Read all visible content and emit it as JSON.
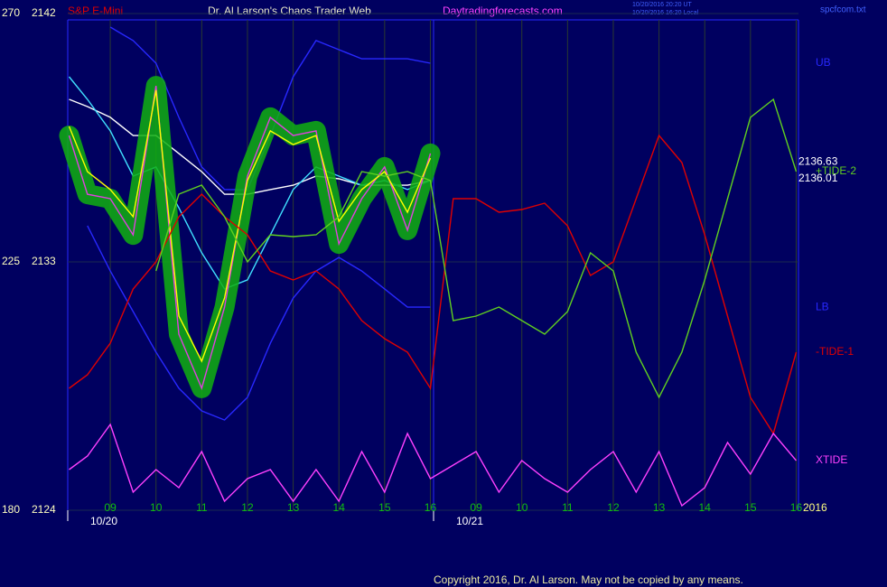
{
  "chart_data": {
    "type": "line",
    "title": "Dr. Al Larson's Chaos Trader Web",
    "subtitle": "S&P E-Mini",
    "site": "Daytradingforecasts.com",
    "timestamps": [
      "10/20/2016 20:20 UT",
      "10/20/2016 16:20 Local"
    ],
    "file": "spcfcom.txt",
    "copyright": "Copyright 2016, Dr. Al Larson. May not be copied by any means.",
    "year": "2016",
    "grid": true,
    "xlim": [
      0.07,
      16.05
    ],
    "xticks": [
      {
        "value": 1,
        "label": "09"
      },
      {
        "value": 2,
        "label": "10"
      },
      {
        "value": 3,
        "label": "11"
      },
      {
        "value": 4,
        "label": "12"
      },
      {
        "value": 5,
        "label": "13"
      },
      {
        "value": 6,
        "label": "14"
      },
      {
        "value": 7,
        "label": "15"
      },
      {
        "value": 8,
        "label": "16"
      },
      {
        "value": 9,
        "label": "09"
      },
      {
        "value": 10,
        "label": "10"
      },
      {
        "value": 11,
        "label": "11"
      },
      {
        "value": 12,
        "label": "12"
      },
      {
        "value": 13,
        "label": "13"
      },
      {
        "value": 14,
        "label": "14"
      },
      {
        "value": 15,
        "label": "15"
      },
      {
        "value": 16,
        "label": "16"
      }
    ],
    "day_ticks": [
      {
        "value": 0.07,
        "label": "10/20"
      },
      {
        "value": 8.07,
        "label": "10/21"
      }
    ],
    "ylim": [
      2124,
      2142
    ],
    "yticks": [
      2124,
      2133,
      2142
    ],
    "y2lim": [
      180,
      270
    ],
    "y2ticks": [
      180,
      225,
      270
    ],
    "price_labels": [
      2136.63,
      2136.01
    ],
    "x": [
      0.1,
      0.5,
      1,
      1.5,
      2,
      2.5,
      3,
      3.5,
      4,
      4.5,
      5,
      5.5,
      6,
      6.5,
      7,
      7.5,
      8,
      8.5,
      9,
      9.5,
      10,
      10.5,
      11,
      11.5,
      12,
      12.5,
      13,
      13.5,
      14,
      14.5,
      15,
      15.5,
      16
    ],
    "series": [
      {
        "name": "UB",
        "color": "#2828ff",
        "values": [
          null,
          null,
          2141.51,
          2141.02,
          2140.2,
          2138.24,
          2136.44,
          2135.62,
          2135.62,
          2137.58,
          2139.71,
          2141.02,
          2140.69,
          2140.36,
          2140.36,
          2140.36,
          2140.2,
          null,
          null,
          null,
          null,
          null,
          null,
          null,
          null,
          null,
          null,
          null,
          null,
          null,
          null,
          null,
          null
        ]
      },
      {
        "name": "LB",
        "color": "#2828ff",
        "values": [
          null,
          2134.31,
          2132.67,
          2131.2,
          2129.73,
          2128.42,
          2127.6,
          2127.27,
          2128.09,
          2130.05,
          2131.69,
          2132.67,
          2133.16,
          2132.67,
          2132.02,
          2131.36,
          2131.36,
          null,
          null,
          null,
          null,
          null,
          null,
          null,
          null,
          null,
          null,
          null,
          null,
          null,
          null,
          null,
          null
        ]
      },
      {
        "color": "#ffffff",
        "values": [
          2138.89,
          2138.63,
          2138.24,
          2137.58,
          2137.58,
          2136.93,
          2136.27,
          2135.45,
          2135.45,
          2135.62,
          2135.78,
          2136.11,
          2136.01,
          2135.78,
          2135.78,
          2135.78,
          2135.95,
          null,
          null,
          null,
          null,
          null,
          null,
          null,
          null,
          null,
          null,
          null,
          null,
          null,
          null,
          null,
          null
        ]
      },
      {
        "color": "#40e0ff",
        "values": [
          2139.71,
          2138.89,
          2137.75,
          2136.11,
          2136.44,
          2134.96,
          2133.33,
          2132.02,
          2132.35,
          2133.98,
          2135.62,
          2136.44,
          2136.11,
          2135.78,
          2135.95,
          2135.62,
          2135.95,
          null,
          null,
          null,
          null,
          null,
          null,
          null,
          null,
          null,
          null,
          null,
          null,
          null,
          null,
          null,
          null
        ]
      },
      {
        "color": "#e040e0",
        "glow": "#10b010",
        "values": [
          2137.58,
          2135.45,
          2135.29,
          2133.98,
          2139.38,
          2130.38,
          2128.42,
          2131.36,
          2136.11,
          2138.24,
          2137.58,
          2137.75,
          2133.65,
          2135.29,
          2136.44,
          2134.15,
          2136.93,
          null,
          null,
          null,
          null,
          null,
          null,
          null,
          null,
          null,
          null,
          null,
          null,
          null,
          null,
          null,
          null
        ]
      },
      {
        "color": "#ffff00",
        "values": [
          2137.91,
          2136.27,
          2135.62,
          2134.64,
          2139.22,
          2131.04,
          2129.4,
          2131.69,
          2135.95,
          2137.75,
          2137.25,
          2137.58,
          2134.47,
          2135.62,
          2136.27,
          2134.8,
          2136.76,
          null,
          null,
          null,
          null,
          null,
          null,
          null,
          null,
          null,
          null,
          null,
          null,
          null,
          null,
          null,
          null
        ]
      },
      {
        "name": "-TIDE-1",
        "color": "#e00000",
        "axis": "y2",
        "values": [
          202.09,
          204.55,
          210.27,
          220.09,
          225.0,
          233.18,
          237.27,
          233.18,
          229.91,
          223.36,
          221.73,
          223.36,
          220.09,
          214.36,
          211.09,
          208.64,
          202.09,
          236.45,
          236.45,
          234.0,
          234.49,
          235.64,
          231.55,
          222.55,
          225.0,
          236.45,
          247.91,
          243.0,
          229.91,
          215.18,
          200.45,
          193.91,
          208.64
        ]
      },
      {
        "name": "+TIDE-2",
        "color": "#60d020",
        "axis": "y2",
        "values": [
          null,
          null,
          null,
          null,
          223.36,
          237.27,
          238.91,
          233.18,
          225.0,
          229.91,
          229.58,
          229.91,
          233.18,
          241.36,
          240.55,
          241.36,
          239.73,
          214.36,
          215.18,
          216.82,
          214.36,
          211.91,
          216.0,
          226.64,
          223.36,
          208.64,
          200.45,
          208.64,
          221.73,
          236.45,
          251.18,
          254.45,
          241.36
        ]
      },
      {
        "name": "XTIDE",
        "color": "#ff40ff",
        "axis": "y2",
        "values": [
          187.36,
          189.82,
          195.55,
          183.27,
          187.36,
          184.09,
          190.64,
          181.64,
          185.73,
          187.36,
          181.64,
          187.36,
          181.64,
          190.64,
          183.27,
          193.91,
          185.73,
          188.18,
          190.64,
          183.27,
          189.0,
          185.73,
          183.27,
          187.36,
          190.64,
          183.27,
          190.64,
          180.82,
          184.09,
          192.27,
          186.55,
          193.91,
          189.0
        ]
      }
    ]
  }
}
